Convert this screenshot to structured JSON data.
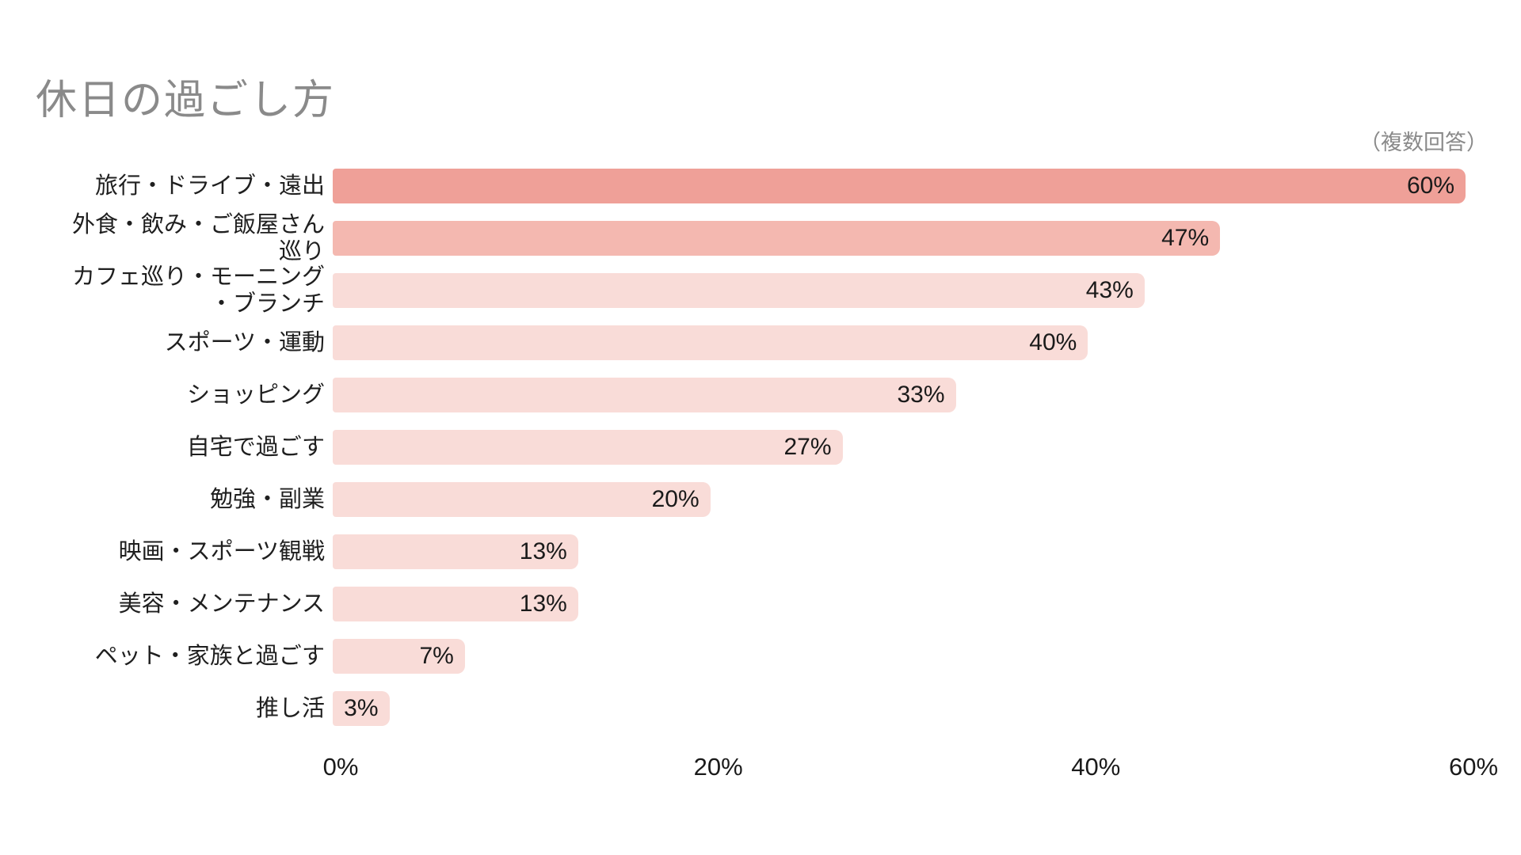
{
  "title": "休日の過ごし方",
  "note": "（複数回答）",
  "colors": {
    "rank1_bar": "#efa098",
    "rank2_bar": "#f4b8b0",
    "default_bar": "#f9dcd8",
    "title_text": "#8a8a8a",
    "label_text": "#1f1f1f"
  },
  "chart_data": {
    "type": "bar",
    "orientation": "horizontal",
    "title": "休日の過ごし方",
    "subtitle": "（複数回答）",
    "xlabel": "",
    "ylabel": "",
    "xlim": [
      0,
      60
    ],
    "grid": false,
    "legend": null,
    "categories": [
      "旅行・ドライブ・遠出",
      "外食・飲み・ご飯屋さん\n巡り",
      "カフェ巡り・モーニング\n・ブランチ",
      "スポーツ・運動",
      "ショッピング",
      "自宅で過ごす",
      "勉強・副業",
      "映画・スポーツ観戦",
      "美容・メンテナンス",
      "ペット・家族と過ごす",
      "推し活"
    ],
    "values": [
      60,
      47,
      43,
      40,
      33,
      27,
      20,
      13,
      13,
      7,
      3
    ],
    "value_labels": [
      "60%",
      "47%",
      "43%",
      "40%",
      "33%",
      "27%",
      "20%",
      "13%",
      "13%",
      "7%",
      "3%"
    ],
    "bar_colors": [
      "#efa098",
      "#f4b8b0",
      "#f9dcd8",
      "#f9dcd8",
      "#f9dcd8",
      "#f9dcd8",
      "#f9dcd8",
      "#f9dcd8",
      "#f9dcd8",
      "#f9dcd8",
      "#f9dcd8"
    ],
    "x_ticks": {
      "labels": [
        "0%",
        "20%",
        "40%",
        "60%"
      ],
      "positions_pct": [
        0,
        33.3333,
        66.6667,
        100
      ]
    }
  }
}
